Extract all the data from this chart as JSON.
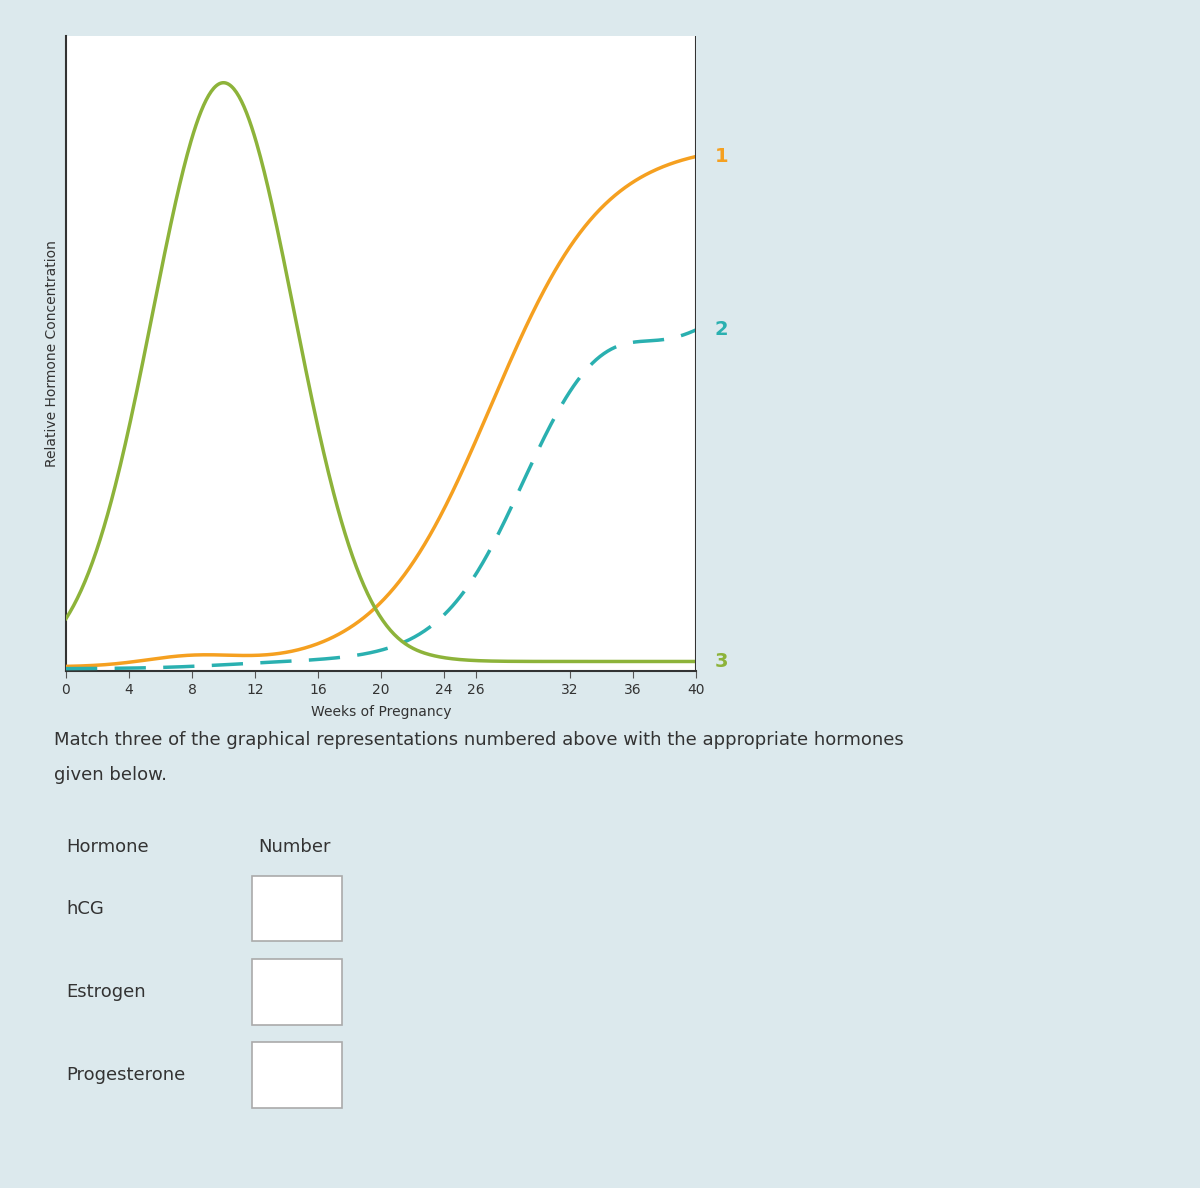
{
  "background_color": "#dce9ed",
  "chart_bg": "#ffffff",
  "ylabel": "Relative Hormone Concentration",
  "xlabel": "Weeks of Pregnancy",
  "x_ticks": [
    0,
    4,
    8,
    12,
    16,
    20,
    24,
    26,
    32,
    36,
    40
  ],
  "line1_color": "#f5a020",
  "line2_color": "#2ab0b0",
  "line3_color": "#8db33a",
  "label1_color": "#f5a020",
  "label2_color": "#2ab0b0",
  "label3_color": "#8db33a",
  "match_text_line1": "Match three of the graphical representations numbered above with the appropriate hormones",
  "match_text_line2": "given below.",
  "hormones": [
    "hCG",
    "Estrogen",
    "Progesterone"
  ],
  "hormone_label": "Hormone",
  "number_label": "Number",
  "box_border_color": "#aaaaaa",
  "text_color": "#333333"
}
